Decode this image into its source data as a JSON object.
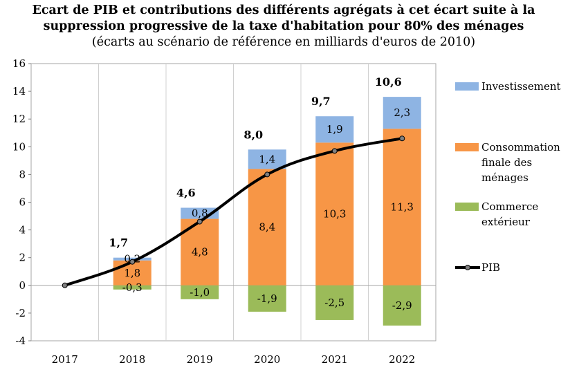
{
  "chart_data": {
    "type": "bar",
    "stacked": true,
    "title_bold": "Ecart de PIB et contributions des différents agrégats à cet écart suite à la suppression progressive de la taxe d'habitation pour 80% des ménages",
    "title_normal": "(écarts au scénario de référence en milliards d'euros de 2010)",
    "categories": [
      "2017",
      "2018",
      "2019",
      "2020",
      "2021",
      "2022"
    ],
    "ylim": [
      -4,
      16
    ],
    "yticks": [
      -4,
      -2,
      0,
      2,
      4,
      6,
      8,
      10,
      12,
      14,
      16
    ],
    "grid": "vertical",
    "legend_position": "right",
    "series": [
      {
        "name": "Investissement",
        "color": "#8eb4e3",
        "values": [
          0,
          0.2,
          0.8,
          1.4,
          1.9,
          2.3
        ],
        "labels": [
          "",
          "0,2",
          "0,8",
          "1,4",
          "1,9",
          "2,3"
        ]
      },
      {
        "name": "Consommation finale des ménages",
        "color": "#f79646",
        "values": [
          0,
          1.8,
          4.8,
          8.4,
          10.3,
          11.3
        ],
        "labels": [
          "",
          "1,8",
          "4,8",
          "8,4",
          "10,3",
          "11,3"
        ]
      },
      {
        "name": "Commerce extérieur",
        "color": "#9bbb59",
        "values": [
          0,
          -0.3,
          -1.0,
          -1.9,
          -2.5,
          -2.9
        ],
        "labels": [
          "",
          "-0,3",
          "-1,0",
          "-1,9",
          "-2,5",
          "-2,9"
        ]
      }
    ],
    "line": {
      "name": "PIB",
      "color": "#000000",
      "values": [
        0,
        1.7,
        4.6,
        8.0,
        9.7,
        10.6
      ],
      "labels": [
        "",
        "1,7",
        "4,6",
        "8,0",
        "9,7",
        "10,6"
      ]
    }
  }
}
